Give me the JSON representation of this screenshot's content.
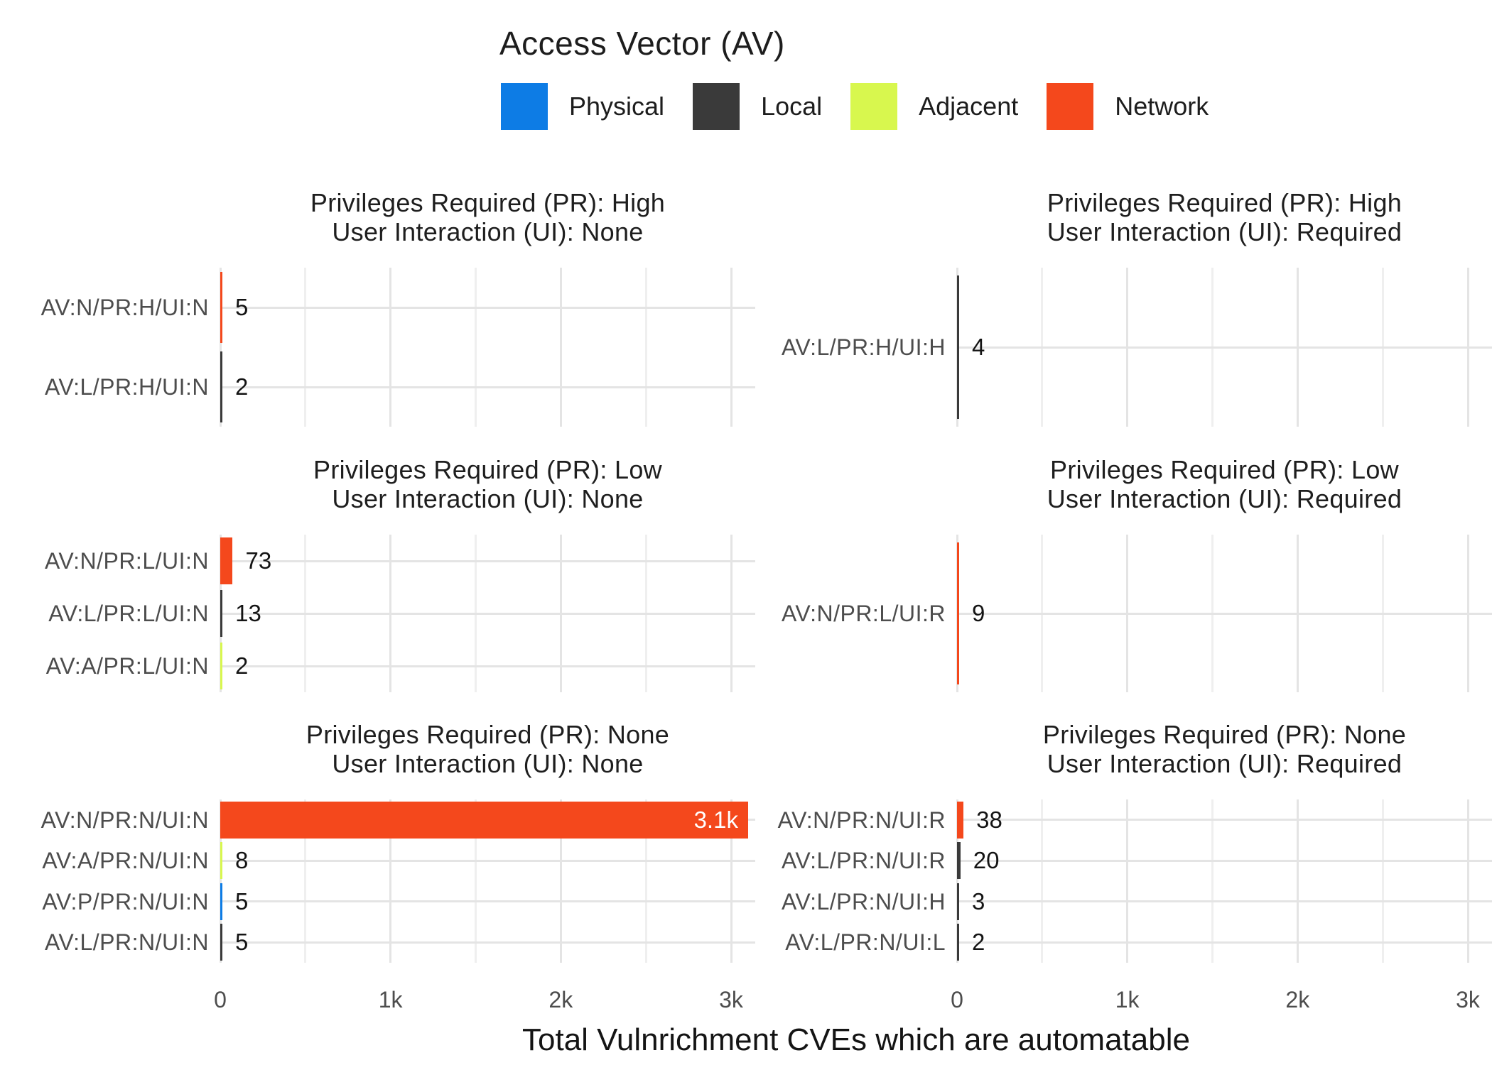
{
  "legend": {
    "title": "Access Vector (AV)",
    "items": [
      {
        "label": "Physical",
        "color": "#0D7CE5"
      },
      {
        "label": "Local",
        "color": "#3A3A3A"
      },
      {
        "label": "Adjacent",
        "color": "#D8F74E"
      },
      {
        "label": "Network",
        "color": "#F4481C"
      }
    ]
  },
  "axis": {
    "xlabel": "Total Vulnrichment CVEs which are automatable",
    "ticks": [
      {
        "label": "0",
        "value": 0
      },
      {
        "label": "1k",
        "value": 1000
      },
      {
        "label": "2k",
        "value": 2000
      },
      {
        "label": "3k",
        "value": 3000
      }
    ],
    "minor_tick_values": [
      500,
      1500,
      2500
    ],
    "range": [
      0,
      3140
    ],
    "grid": true
  },
  "chart_data": {
    "type": "bar",
    "orientation": "horizontal",
    "value_unit": "CVE count",
    "facets": [
      {
        "id": "pr-high-ui-none",
        "title_line1": "Privileges Required (PR): High",
        "title_line2": "User Interaction (UI): None",
        "column": "left",
        "row": 0,
        "bars": [
          {
            "category": "AV:N/PR:H/UI:N",
            "value": 5,
            "label": "5",
            "access_vector": "Network"
          },
          {
            "category": "AV:L/PR:H/UI:N",
            "value": 2,
            "label": "2",
            "access_vector": "Local"
          }
        ]
      },
      {
        "id": "pr-high-ui-required",
        "title_line1": "Privileges Required (PR): High",
        "title_line2": "User Interaction (UI): Required",
        "column": "right",
        "row": 0,
        "bars": [
          {
            "category": "AV:L/PR:H/UI:H",
            "value": 4,
            "label": "4",
            "access_vector": "Local"
          }
        ]
      },
      {
        "id": "pr-low-ui-none",
        "title_line1": "Privileges Required (PR): Low",
        "title_line2": "User Interaction (UI): None",
        "column": "left",
        "row": 1,
        "bars": [
          {
            "category": "AV:N/PR:L/UI:N",
            "value": 73,
            "label": "73",
            "access_vector": "Network"
          },
          {
            "category": "AV:L/PR:L/UI:N",
            "value": 13,
            "label": "13",
            "access_vector": "Local"
          },
          {
            "category": "AV:A/PR:L/UI:N",
            "value": 2,
            "label": "2",
            "access_vector": "Adjacent"
          }
        ]
      },
      {
        "id": "pr-low-ui-required",
        "title_line1": "Privileges Required (PR): Low",
        "title_line2": "User Interaction (UI): Required",
        "column": "right",
        "row": 1,
        "bars": [
          {
            "category": "AV:N/PR:L/UI:R",
            "value": 9,
            "label": "9",
            "access_vector": "Network"
          }
        ]
      },
      {
        "id": "pr-none-ui-none",
        "title_line1": "Privileges Required (PR): None",
        "title_line2": "User Interaction (UI): None",
        "column": "left",
        "row": 2,
        "bars": [
          {
            "category": "AV:N/PR:N/UI:N",
            "value": 3100,
            "label": "3.1k",
            "access_vector": "Network"
          },
          {
            "category": "AV:A/PR:N/UI:N",
            "value": 8,
            "label": "8",
            "access_vector": "Adjacent"
          },
          {
            "category": "AV:P/PR:N/UI:N",
            "value": 5,
            "label": "5",
            "access_vector": "Physical"
          },
          {
            "category": "AV:L/PR:N/UI:N",
            "value": 5,
            "label": "5",
            "access_vector": "Local"
          }
        ]
      },
      {
        "id": "pr-none-ui-required",
        "title_line1": "Privileges Required (PR): None",
        "title_line2": "User Interaction (UI): Required",
        "column": "right",
        "row": 2,
        "bars": [
          {
            "category": "AV:N/PR:N/UI:R",
            "value": 38,
            "label": "38",
            "access_vector": "Network"
          },
          {
            "category": "AV:L/PR:N/UI:R",
            "value": 20,
            "label": "20",
            "access_vector": "Local"
          },
          {
            "category": "AV:L/PR:N/UI:H",
            "value": 3,
            "label": "3",
            "access_vector": "Local"
          },
          {
            "category": "AV:L/PR:N/UI:L",
            "value": 2,
            "label": "2",
            "access_vector": "Local"
          }
        ]
      }
    ]
  }
}
